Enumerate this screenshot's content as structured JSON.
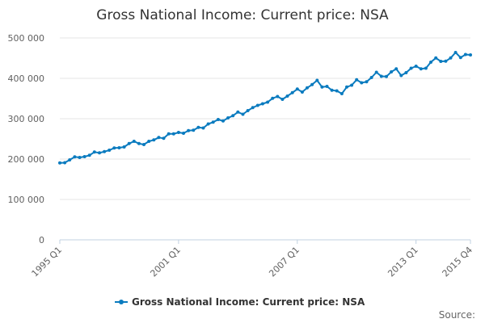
{
  "chart_data": {
    "type": "line",
    "title": "Gross National Income: Current price: NSA",
    "xlabel": "",
    "ylabel": "",
    "ylim": [
      0,
      500000
    ],
    "yticks": [
      "0",
      "100 000",
      "200 000",
      "300 000",
      "400 000",
      "500 000"
    ],
    "x_tick_labels": [
      "1995 Q1",
      "2001 Q1",
      "2007 Q1",
      "2013 Q1",
      "2015 Q4"
    ],
    "grid": true,
    "legend": "bottom-center",
    "series": [
      {
        "name": "Gross National Income: Current price: NSA",
        "color": "#0a7bbf",
        "x_start": "1995 Q1",
        "x_end": "2015 Q4",
        "values": [
          190500,
          191000,
          198000,
          205500,
          204000,
          206000,
          209500,
          217500,
          215500,
          218500,
          222000,
          227500,
          228000,
          230000,
          238500,
          244000,
          238500,
          236000,
          244000,
          247500,
          253500,
          251500,
          262500,
          262500,
          266000,
          264000,
          270500,
          271500,
          278500,
          277000,
          287000,
          291500,
          298000,
          294500,
          302000,
          307500,
          316500,
          311000,
          320000,
          327500,
          333000,
          337000,
          341000,
          350500,
          355000,
          348000,
          356000,
          364500,
          373500,
          366000,
          376500,
          384500,
          395000,
          378500,
          380000,
          370500,
          369000,
          362000,
          378500,
          383000,
          396500,
          389000,
          391500,
          402000,
          415000,
          405000,
          404500,
          416000,
          423500,
          407000,
          414000,
          425000,
          430000,
          423500,
          425000,
          440000,
          450500,
          442000,
          442500,
          450500,
          464000,
          451500,
          459000,
          458000
        ]
      }
    ]
  },
  "source": {
    "label": "Source:"
  }
}
